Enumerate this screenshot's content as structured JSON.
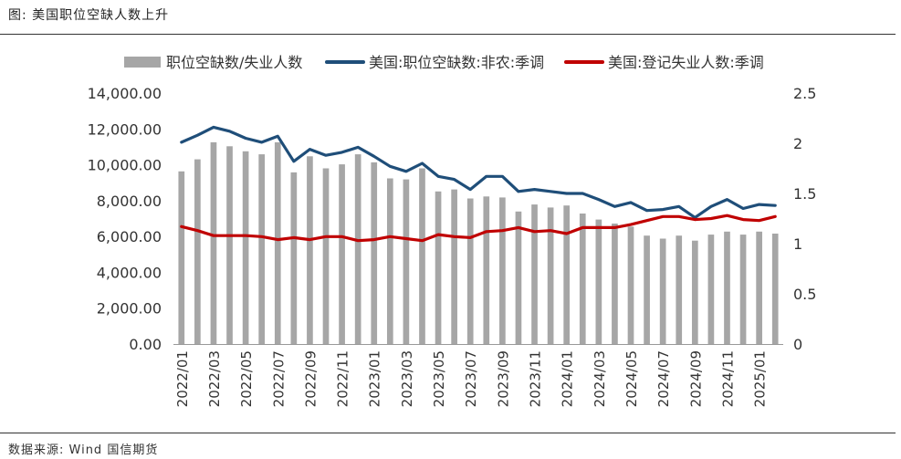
{
  "header": {
    "title": "图:  美国职位空缺人数上升"
  },
  "footer": {
    "source": "数据来源:  Wind  国信期货"
  },
  "chart_data": {
    "type": "bar+line",
    "title": "美国职位空缺人数上升",
    "categories": [
      "2022/01",
      "2022/02",
      "2022/03",
      "2022/04",
      "2022/05",
      "2022/06",
      "2022/07",
      "2022/08",
      "2022/09",
      "2022/10",
      "2022/11",
      "2022/12",
      "2023/01",
      "2023/02",
      "2023/03",
      "2023/04",
      "2023/05",
      "2023/06",
      "2023/07",
      "2023/08",
      "2023/09",
      "2023/10",
      "2023/11",
      "2023/12",
      "2024/01",
      "2024/02",
      "2024/03",
      "2024/04",
      "2024/05",
      "2024/06",
      "2024/07",
      "2024/08",
      "2024/09",
      "2024/10",
      "2024/11",
      "2024/12",
      "2025/01",
      "2025/02"
    ],
    "x_tick_labels": [
      "2022/01",
      "2022/03",
      "2022/05",
      "2022/07",
      "2022/09",
      "2022/11",
      "2023/01",
      "2023/03",
      "2023/05",
      "2023/07",
      "2023/09",
      "2023/11",
      "2024/01",
      "2024/03",
      "2024/05",
      "2024/07",
      "2024/09",
      "2024/11",
      "2025/01"
    ],
    "y_left": {
      "min": 0,
      "max": 14000,
      "ticks": [
        "0.00",
        "2,000.00",
        "4,000.00",
        "6,000.00",
        "8,000.00",
        "10,000.00",
        "12,000.00",
        "14,000.00"
      ]
    },
    "y_right": {
      "min": 0,
      "max": 2.5,
      "ticks": [
        "0",
        "0.5",
        "1",
        "1.5",
        "2",
        "2.5"
      ]
    },
    "grid": false,
    "legend_position": "top",
    "series": [
      {
        "name": "职位空缺数/失业人数",
        "type": "bar",
        "axis": "right",
        "color": "#a6a6a6",
        "values": [
          1.72,
          1.84,
          2.01,
          1.97,
          1.92,
          1.89,
          2.01,
          1.71,
          1.87,
          1.75,
          1.79,
          1.89,
          1.81,
          1.65,
          1.64,
          1.75,
          1.52,
          1.54,
          1.45,
          1.47,
          1.46,
          1.32,
          1.39,
          1.36,
          1.38,
          1.3,
          1.24,
          1.2,
          1.17,
          1.08,
          1.05,
          1.08,
          1.03,
          1.09,
          1.12,
          1.09,
          1.12,
          1.1
        ]
      },
      {
        "name": "美国:职位空缺数:非农:季调",
        "type": "line",
        "axis": "right",
        "color": "#1f4e79",
        "values": [
          2.01,
          2.08,
          2.16,
          2.12,
          2.05,
          2.01,
          2.07,
          1.82,
          1.94,
          1.88,
          1.91,
          1.96,
          1.87,
          1.77,
          1.72,
          1.8,
          1.67,
          1.64,
          1.54,
          1.67,
          1.67,
          1.52,
          1.54,
          1.52,
          1.5,
          1.5,
          1.44,
          1.37,
          1.41,
          1.33,
          1.34,
          1.37,
          1.26,
          1.37,
          1.44,
          1.35,
          1.39,
          1.38
        ]
      },
      {
        "name": "美国:登记失业人数:季调",
        "type": "line",
        "axis": "right",
        "color": "#c00000",
        "values": [
          1.17,
          1.13,
          1.08,
          1.08,
          1.08,
          1.07,
          1.04,
          1.06,
          1.04,
          1.07,
          1.07,
          1.03,
          1.04,
          1.07,
          1.05,
          1.03,
          1.09,
          1.07,
          1.06,
          1.12,
          1.13,
          1.16,
          1.12,
          1.13,
          1.1,
          1.16,
          1.16,
          1.16,
          1.19,
          1.23,
          1.27,
          1.27,
          1.24,
          1.25,
          1.28,
          1.24,
          1.23,
          1.27
        ]
      }
    ]
  }
}
